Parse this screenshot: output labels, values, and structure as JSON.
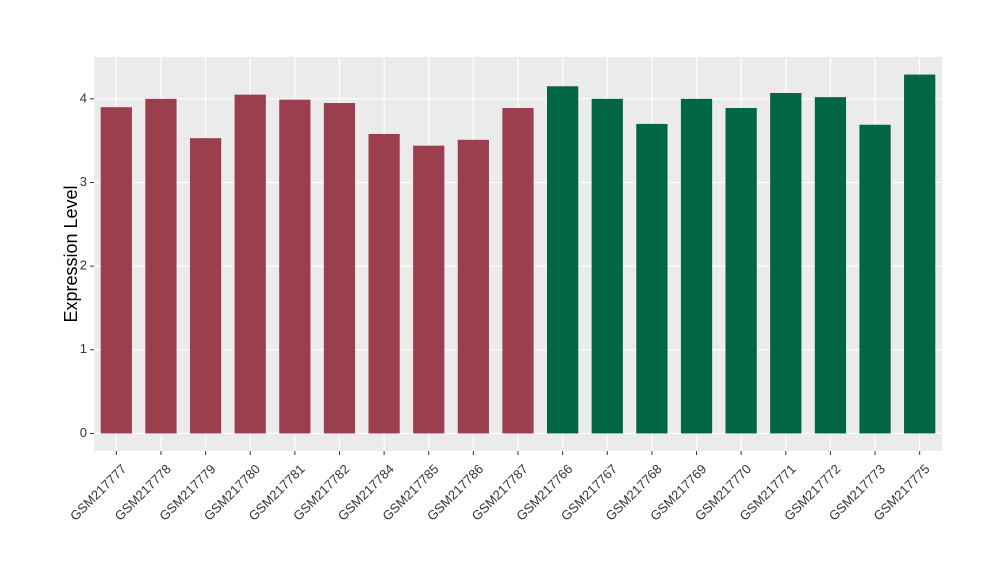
{
  "chart_data": {
    "type": "bar",
    "y_label": "Expression Level",
    "categories": [
      "GSM217777",
      "GSM217778",
      "GSM217779",
      "GSM217780",
      "GSM217781",
      "GSM217782",
      "GSM217784",
      "GSM217785",
      "GSM217786",
      "GSM217787",
      "GSM217766",
      "GSM217767",
      "GSM217768",
      "GSM217769",
      "GSM217770",
      "GSM217771",
      "GSM217772",
      "GSM217773",
      "GSM217775"
    ],
    "values": [
      3.9,
      4.0,
      3.53,
      4.05,
      3.99,
      3.95,
      3.58,
      3.44,
      3.51,
      3.89,
      4.15,
      4.0,
      3.7,
      4.0,
      3.89,
      4.07,
      4.02,
      3.69,
      4.29
    ],
    "colors": [
      "#9b3f4e",
      "#9b3f4e",
      "#9b3f4e",
      "#9b3f4e",
      "#9b3f4e",
      "#9b3f4e",
      "#9b3f4e",
      "#9b3f4e",
      "#9b3f4e",
      "#9b3f4e",
      "#006644",
      "#006644",
      "#006644",
      "#006644",
      "#006644",
      "#006644",
      "#006644",
      "#006644",
      "#006644"
    ],
    "ylim": [
      -0.21,
      4.5
    ],
    "yticks": [
      0,
      1,
      2,
      3,
      4
    ],
    "grid": true
  }
}
